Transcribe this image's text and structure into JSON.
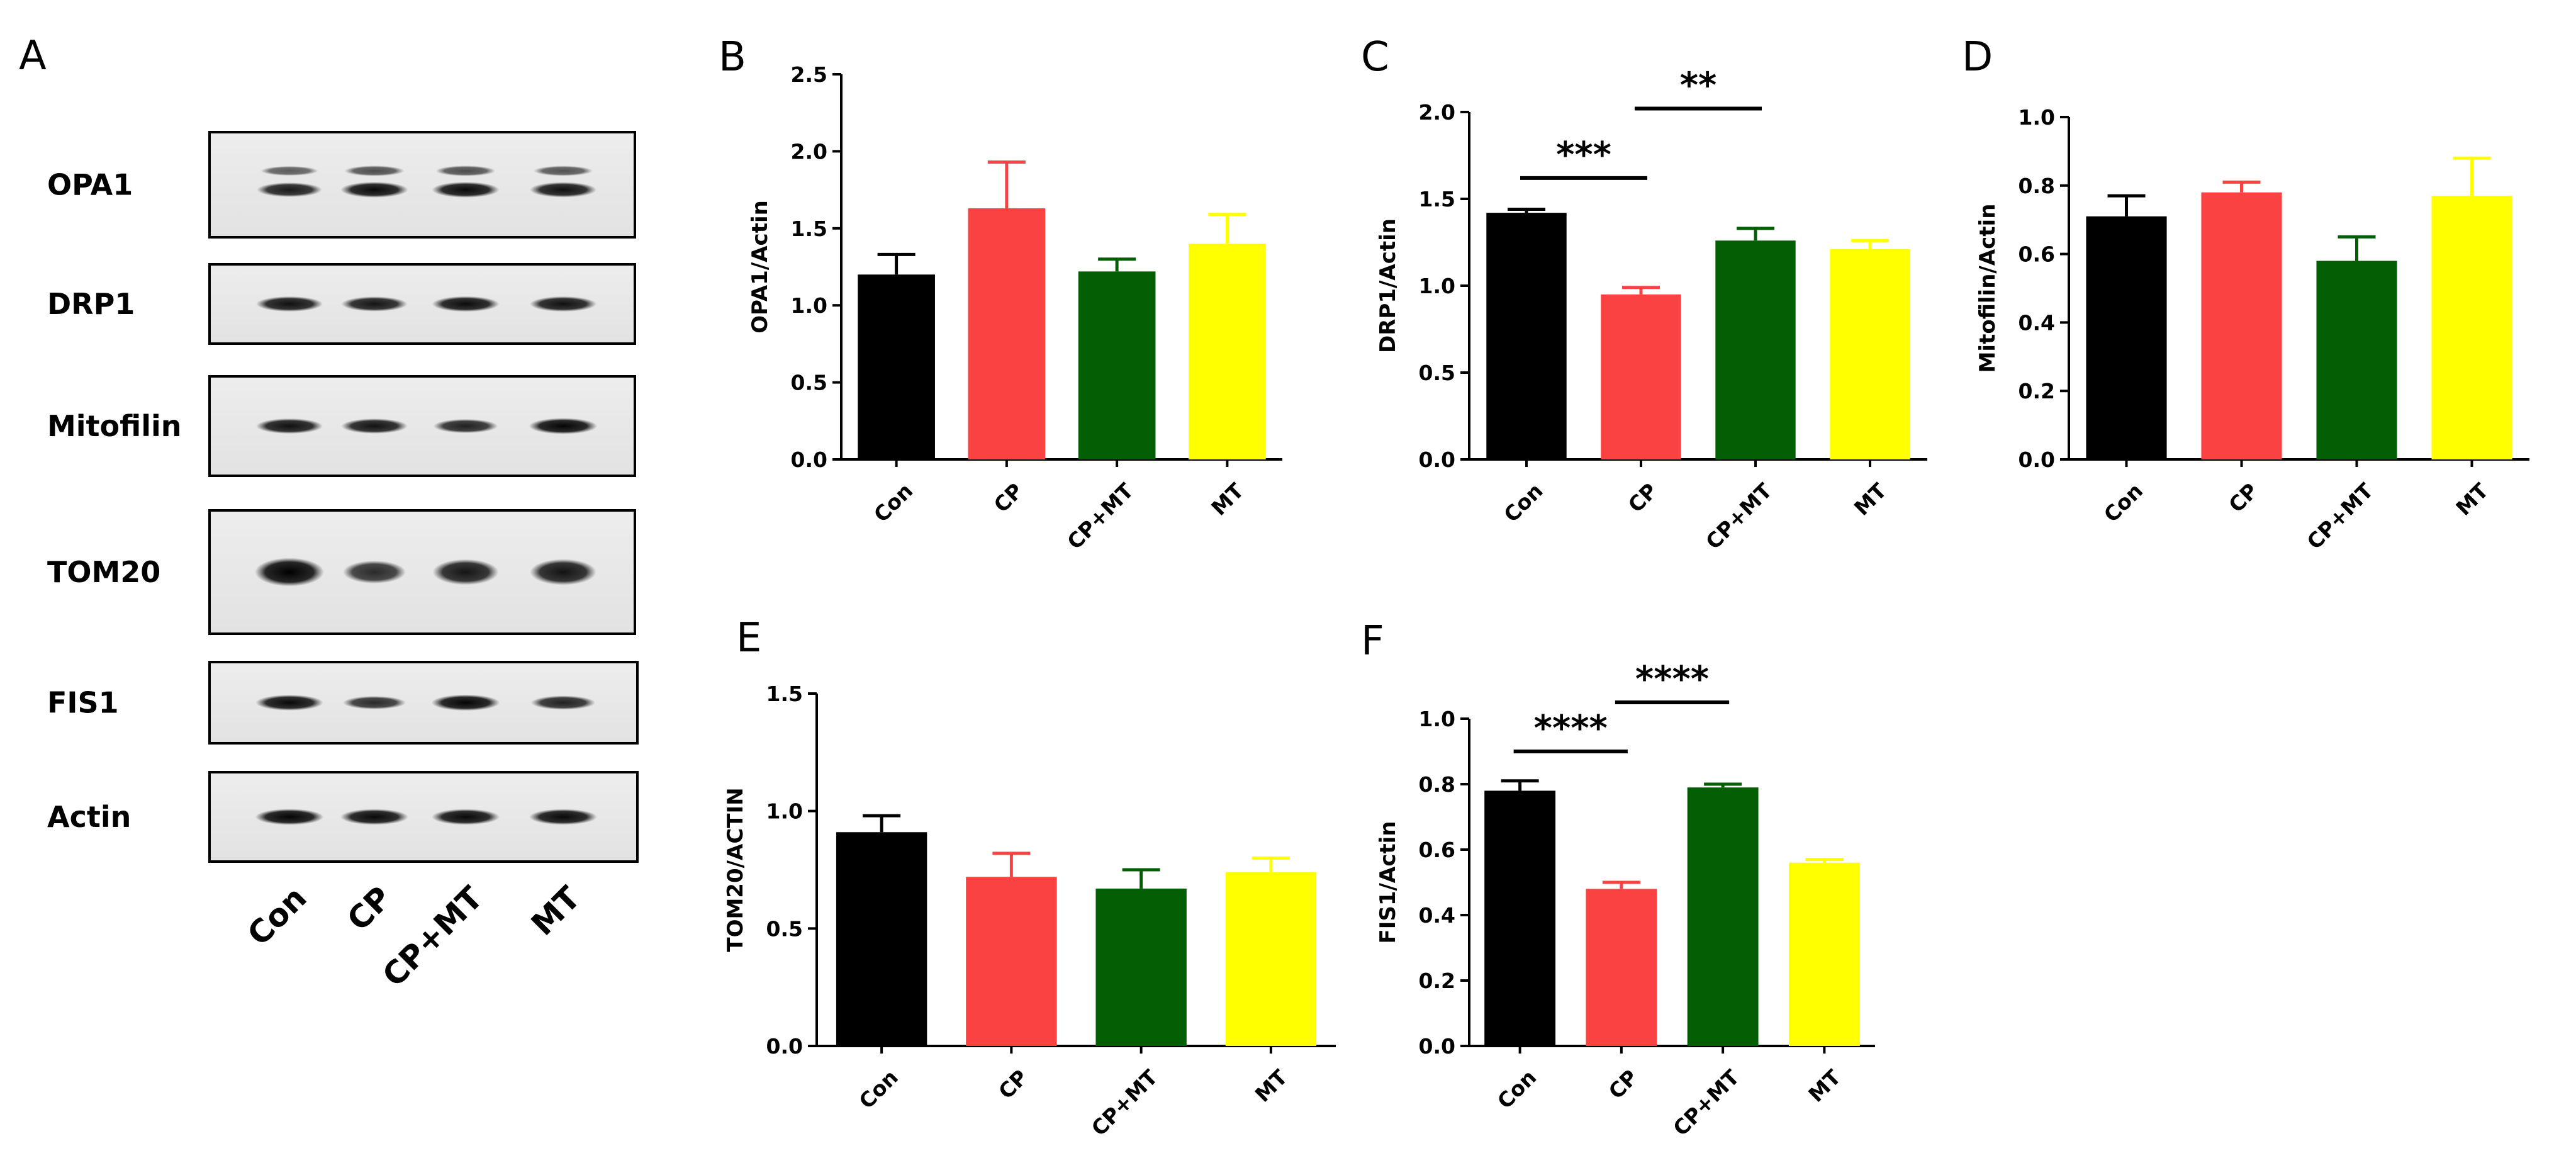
{
  "panel_a": {
    "letter": "A",
    "blots": [
      {
        "name": "OPA1"
      },
      {
        "name": "DRP1"
      },
      {
        "name": "Mitofilin"
      },
      {
        "name": "TOM20"
      },
      {
        "name": "FIS1"
      },
      {
        "name": "Actin"
      }
    ],
    "lanes": [
      "Con",
      "CP",
      "CP+MT",
      "MT"
    ],
    "band_intensity": {
      "OPA1": [
        0.75,
        0.9,
        0.9,
        0.85
      ],
      "DRP1": [
        0.85,
        0.8,
        0.88,
        0.85
      ],
      "Mitofilin": [
        0.85,
        0.82,
        0.7,
        0.95
      ],
      "TOM20": [
        1.0,
        0.6,
        0.8,
        0.82
      ],
      "FIS1": [
        0.9,
        0.6,
        0.95,
        0.7
      ],
      "Actin": [
        0.95,
        0.92,
        0.92,
        0.92
      ]
    }
  },
  "chart_data": [
    {
      "id": "B",
      "type": "bar",
      "categories": [
        "Con",
        "CP",
        "CP+MT",
        "MT"
      ],
      "values": [
        1.2,
        1.63,
        1.22,
        1.4
      ],
      "errors": [
        0.13,
        0.3,
        0.08,
        0.19
      ],
      "colors": [
        "#000000",
        "#fa4242",
        "#045f04",
        "#ffff00"
      ],
      "ylabel": "OPA1/Actin",
      "ylim": [
        0,
        2.5
      ],
      "yticks": [
        "0.0",
        "0.5",
        "1.0",
        "1.5",
        "2.0",
        "2.5"
      ],
      "significance": []
    },
    {
      "id": "C",
      "type": "bar",
      "categories": [
        "Con",
        "CP",
        "CP+MT",
        "MT"
      ],
      "values": [
        1.42,
        0.95,
        1.26,
        1.21
      ],
      "errors": [
        0.02,
        0.04,
        0.07,
        0.05
      ],
      "colors": [
        "#000000",
        "#fa4242",
        "#045f04",
        "#ffff00"
      ],
      "ylabel": "DRP1/Actin",
      "ylim": [
        0,
        2.0
      ],
      "yticks": [
        "0.0",
        "0.5",
        "1.0",
        "1.5",
        "2.0"
      ],
      "significance": [
        {
          "from": 0,
          "to": 1,
          "y": 1.62,
          "label": "***"
        },
        {
          "from": 1,
          "to": 2,
          "y": 2.02,
          "label": "**"
        }
      ]
    },
    {
      "id": "D",
      "type": "bar",
      "categories": [
        "Con",
        "CP",
        "CP+MT",
        "MT"
      ],
      "values": [
        0.71,
        0.78,
        0.58,
        0.77
      ],
      "errors": [
        0.06,
        0.03,
        0.07,
        0.11
      ],
      "colors": [
        "#000000",
        "#fa4242",
        "#045f04",
        "#ffff00"
      ],
      "ylabel": "Mitofilin/Actin",
      "ylim": [
        0,
        1.0
      ],
      "yticks": [
        "0.0",
        "0.2",
        "0.4",
        "0.6",
        "0.8",
        "1.0"
      ],
      "significance": []
    },
    {
      "id": "E",
      "type": "bar",
      "categories": [
        "Con",
        "CP",
        "CP+MT",
        "MT"
      ],
      "values": [
        0.91,
        0.72,
        0.67,
        0.74
      ],
      "errors": [
        0.07,
        0.1,
        0.08,
        0.06
      ],
      "colors": [
        "#000000",
        "#fa4242",
        "#045f04",
        "#ffff00"
      ],
      "ylabel": "TOM20/ACTIN",
      "ylim": [
        0,
        1.5
      ],
      "yticks": [
        "0.0",
        "0.5",
        "1.0",
        "1.5"
      ],
      "significance": []
    },
    {
      "id": "F",
      "type": "bar",
      "categories": [
        "Con",
        "CP",
        "CP+MT",
        "MT"
      ],
      "values": [
        0.78,
        0.48,
        0.79,
        0.56
      ],
      "errors": [
        0.03,
        0.02,
        0.01,
        0.01
      ],
      "colors": [
        "#000000",
        "#fa4242",
        "#045f04",
        "#ffff00"
      ],
      "ylabel": "FIS1/Actin",
      "ylim": [
        0,
        1.0
      ],
      "yticks": [
        "0.0",
        "0.2",
        "0.4",
        "0.6",
        "0.8",
        "1.0"
      ],
      "significance": [
        {
          "from": 0,
          "to": 1,
          "y": 0.9,
          "label": "****"
        },
        {
          "from": 1,
          "to": 2,
          "y": 1.05,
          "label": "****"
        }
      ]
    }
  ]
}
